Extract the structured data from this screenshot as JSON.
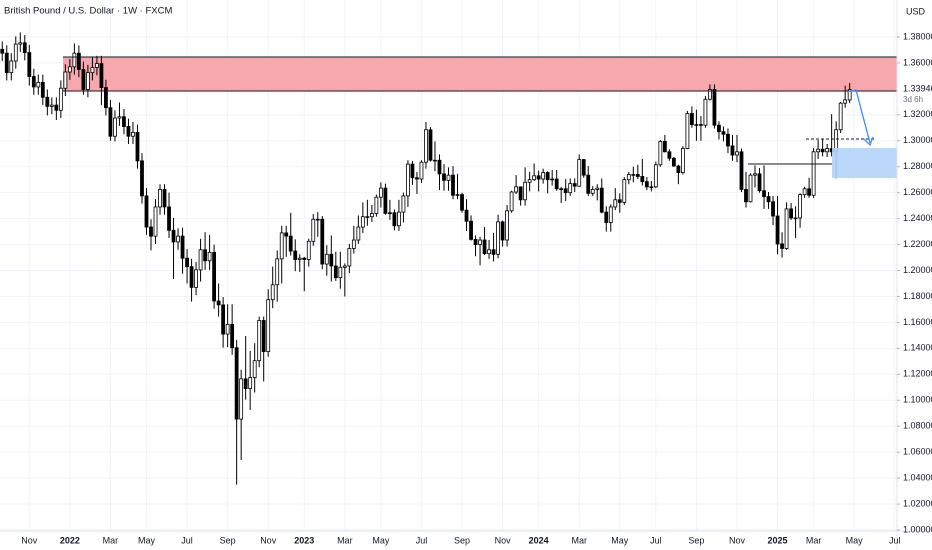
{
  "chart_data": {
    "type": "candlestick",
    "title": "British Pound / U.S. Dollar · 1W · FXCM",
    "currency": "USD",
    "countdown": "3d 6h",
    "up_color": "#ffffff",
    "down_color": "#000000",
    "wick_color": "#000000",
    "grid": true,
    "ylim": [
      1.0,
      1.4085
    ],
    "yticks": [
      {
        "value": 1.0,
        "label": "1.00000"
      },
      {
        "value": 1.02,
        "label": "1.02000"
      },
      {
        "value": 1.04,
        "label": "1.04000"
      },
      {
        "value": 1.06,
        "label": "1.06000"
      },
      {
        "value": 1.08,
        "label": "1.08000"
      },
      {
        "value": 1.1,
        "label": "1.10000"
      },
      {
        "value": 1.12,
        "label": "1.12000"
      },
      {
        "value": 1.14,
        "label": "1.14000"
      },
      {
        "value": 1.16,
        "label": "1.16000"
      },
      {
        "value": 1.18,
        "label": "1.18000"
      },
      {
        "value": 1.2,
        "label": "1.20000"
      },
      {
        "value": 1.22,
        "label": "1.22000"
      },
      {
        "value": 1.24,
        "label": "1.24000"
      },
      {
        "value": 1.26,
        "label": "1.26000"
      },
      {
        "value": 1.28,
        "label": "1.28000"
      },
      {
        "value": 1.3,
        "label": "1.30000"
      },
      {
        "value": 1.32,
        "label": "1.32000"
      },
      {
        "value": 1.36,
        "label": "1.36000"
      },
      {
        "value": 1.38,
        "label": "1.38000"
      }
    ],
    "categories": [
      null,
      null,
      null,
      null,
      null,
      null,
      "Nov",
      null,
      null,
      null,
      null,
      null,
      null,
      null,
      null,
      "2022",
      null,
      null,
      null,
      null,
      null,
      null,
      null,
      null,
      "Mar",
      null,
      null,
      null,
      null,
      null,
      null,
      null,
      "May",
      null,
      null,
      null,
      null,
      null,
      null,
      null,
      null,
      "Jul",
      null,
      null,
      null,
      null,
      null,
      null,
      null,
      null,
      "Sep",
      null,
      null,
      null,
      null,
      null,
      null,
      null,
      null,
      "Nov",
      null,
      null,
      null,
      null,
      null,
      null,
      null,
      "2023",
      null,
      null,
      null,
      null,
      null,
      null,
      null,
      null,
      "Mar",
      null,
      null,
      null,
      null,
      null,
      null,
      null,
      "May",
      null,
      null,
      null,
      null,
      null,
      null,
      null,
      null,
      "Jul",
      null,
      null,
      null,
      null,
      null,
      null,
      null,
      null,
      "Sep",
      null,
      null,
      null,
      null,
      null,
      null,
      null,
      null,
      "Nov",
      null,
      null,
      null,
      null,
      null,
      null,
      null,
      "2024",
      null,
      null,
      null,
      null,
      null,
      null,
      null,
      null,
      "Mar",
      null,
      null,
      null,
      null,
      null,
      null,
      null,
      null,
      "May",
      null,
      null,
      null,
      null,
      null,
      null,
      null,
      "Jul",
      null,
      null,
      null,
      null,
      null,
      null,
      null,
      null,
      "Sep",
      null,
      null,
      null,
      null,
      null,
      null,
      null,
      null,
      "Nov",
      null,
      null,
      null,
      null,
      null,
      null,
      null,
      null,
      "2025",
      null,
      null,
      null,
      null,
      null,
      null,
      null,
      "Mar",
      null,
      null,
      null,
      null,
      null,
      null,
      null,
      null,
      "May",
      null,
      null,
      null,
      null,
      null,
      null,
      null,
      null,
      "Jul"
    ],
    "open": [
      1.3705,
      1.3675,
      1.3525,
      1.3615,
      1.3745,
      1.3755,
      1.368,
      1.3495,
      1.3415,
      1.345,
      1.3335,
      1.3265,
      1.3275,
      1.3235,
      1.3405,
      1.353,
      1.357,
      1.3675,
      1.355,
      1.3395,
      1.3525,
      1.3565,
      1.3595,
      1.341,
      1.3255,
      1.3035,
      1.3175,
      1.3185,
      1.311,
      1.3035,
      1.3065,
      1.2845,
      1.2575,
      1.2335,
      1.2265,
      1.249,
      1.2625,
      1.249,
      1.231,
      1.222,
      1.2265,
      1.2095,
      1.203,
      1.187,
      1.2005,
      1.216,
      1.2075,
      1.214,
      1.1765,
      1.1735,
      1.151,
      1.1585,
      1.1405,
      1.0855,
      1.1165,
      1.109,
      1.1175,
      1.1305,
      1.1615,
      1.1375,
      1.1775,
      1.189,
      1.209,
      1.229,
      1.2265,
      1.215,
      1.2085,
      1.2095,
      1.2085,
      1.2225,
      1.2395,
      1.2395,
      1.205,
      1.2125,
      1.2035,
      1.1945,
      1.2025,
      1.2035,
      1.217,
      1.2235,
      1.2335,
      1.2415,
      1.2415,
      1.244,
      1.2565,
      1.2635,
      1.244,
      1.2445,
      1.2345,
      1.245,
      1.2575,
      1.282,
      1.2715,
      1.2705,
      1.2835,
      1.3085,
      1.285,
      1.285,
      1.2745,
      1.2695,
      1.2735,
      1.258,
      1.2585,
      1.2465,
      1.238,
      1.224,
      1.22,
      1.2235,
      1.213,
      1.216,
      1.2125,
      1.2375,
      1.2235,
      1.246,
      1.2605,
      1.2645,
      1.2545,
      1.268,
      1.27,
      1.273,
      1.2705,
      1.2755,
      1.27,
      1.2705,
      1.263,
      1.263,
      1.26,
      1.267,
      1.265,
      1.2855,
      1.2735,
      1.2595,
      1.2625,
      1.2635,
      1.245,
      1.237,
      1.249,
      1.2545,
      1.2525,
      1.27,
      1.274,
      1.274,
      1.2725,
      1.2685,
      1.2645,
      1.2645,
      1.2815,
      1.2995,
      1.2915,
      1.2865,
      1.2805,
      1.2755,
      1.294,
      1.321,
      1.3125,
      1.3125,
      1.312,
      1.332,
      1.3395,
      1.312,
      1.307,
      1.305,
      1.296,
      1.289,
      1.2915,
      1.2625,
      1.253,
      1.2735,
      1.2745,
      1.2615,
      1.257,
      1.253,
      1.242,
      1.2205,
      1.217,
      1.2475,
      1.2405,
      1.2405,
      1.2585,
      1.263,
      1.258,
      1.2915,
      1.2935,
      1.2915,
      1.294,
      1.2915,
      1.3085,
      1.329,
      1.3315,
      null,
      null,
      null,
      null,
      null,
      null,
      null,
      null,
      null,
      null
    ],
    "high": [
      1.3765,
      1.3735,
      1.3675,
      1.3805,
      1.3835,
      1.3815,
      1.374,
      1.3555,
      1.351,
      1.351,
      1.3395,
      1.3335,
      1.3335,
      1.3465,
      1.359,
      1.363,
      1.375,
      1.3735,
      1.361,
      1.3585,
      1.3645,
      1.3655,
      1.3655,
      1.347,
      1.3315,
      1.3235,
      1.3295,
      1.3245,
      1.317,
      1.3145,
      1.3125,
      1.2905,
      1.2635,
      1.2395,
      1.255,
      1.2665,
      1.2665,
      1.26,
      1.2405,
      1.2325,
      1.233,
      1.2165,
      1.209,
      1.2065,
      1.2245,
      1.2295,
      1.2275,
      1.22,
      1.19,
      1.1795,
      1.174,
      1.174,
      1.1465,
      1.1235,
      1.1495,
      1.138,
      1.144,
      1.1645,
      1.1645,
      1.1855,
      1.203,
      1.2155,
      1.2345,
      1.2345,
      1.2445,
      1.224,
      1.2125,
      1.2105,
      1.2245,
      1.2435,
      1.245,
      1.242,
      1.2195,
      1.227,
      1.2145,
      1.2145,
      1.2055,
      1.2205,
      1.2345,
      1.2425,
      1.2525,
      1.2545,
      1.2505,
      1.2585,
      1.268,
      1.267,
      1.2545,
      1.247,
      1.2545,
      1.26,
      1.285,
      1.2845,
      1.276,
      1.285,
      1.3145,
      1.3105,
      1.2995,
      1.2895,
      1.282,
      1.2795,
      1.2805,
      1.2745,
      1.26,
      1.255,
      1.2425,
      1.227,
      1.226,
      1.2335,
      1.2235,
      1.229,
      1.243,
      1.2385,
      1.2505,
      1.2615,
      1.2735,
      1.2645,
      1.2795,
      1.276,
      1.2825,
      1.277,
      1.2785,
      1.2765,
      1.2775,
      1.2775,
      1.2645,
      1.2705,
      1.271,
      1.271,
      1.2895,
      1.286,
      1.2805,
      1.265,
      1.2665,
      1.271,
      1.2495,
      1.251,
      1.2635,
      1.2595,
      1.272,
      1.276,
      1.28,
      1.2815,
      1.286,
      1.272,
      1.269,
      1.284,
      1.3005,
      1.3045,
      1.2935,
      1.2875,
      1.2815,
      1.296,
      1.323,
      1.3265,
      1.324,
      1.319,
      1.3345,
      1.3435,
      1.3435,
      1.315,
      1.311,
      1.3095,
      1.3045,
      1.3045,
      1.294,
      1.276,
      1.275,
      1.281,
      1.279,
      1.281,
      1.2605,
      1.2575,
      1.2575,
      1.2295,
      1.2525,
      1.252,
      1.2495,
      1.2595,
      1.2645,
      1.2715,
      1.2945,
      1.3005,
      1.3015,
      1.2975,
      1.3205,
      1.315,
      1.33,
      1.3425,
      1.3445,
      null,
      null,
      null,
      null,
      null,
      null,
      null,
      null,
      null,
      null
    ],
    "low": [
      1.3615,
      1.3465,
      1.3465,
      1.3555,
      1.3685,
      1.362,
      1.3425,
      1.3355,
      1.3355,
      1.3275,
      1.3195,
      1.3205,
      1.316,
      1.3175,
      1.3345,
      1.347,
      1.351,
      1.349,
      1.3355,
      1.3335,
      1.3465,
      1.3505,
      1.3275,
      1.3195,
      1.3,
      1.2995,
      1.3115,
      1.305,
      1.2975,
      1.2975,
      1.2785,
      1.2515,
      1.2275,
      1.2155,
      1.2205,
      1.243,
      1.243,
      1.225,
      1.1935,
      1.216,
      1.1975,
      1.19,
      1.176,
      1.181,
      1.1915,
      1.2005,
      1.2005,
      1.1705,
      1.1645,
      1.1405,
      1.141,
      1.135,
      1.035,
      1.054,
      1.1005,
      1.0925,
      1.106,
      1.1255,
      1.1145,
      1.1335,
      1.171,
      1.176,
      1.19,
      1.2105,
      1.2115,
      1.1995,
      1.199,
      1.184,
      1.203,
      1.219,
      1.226,
      1.201,
      1.196,
      1.1915,
      1.192,
      1.186,
      1.18,
      1.198,
      1.213,
      1.2205,
      1.229,
      1.2345,
      1.2375,
      1.2415,
      1.2485,
      1.243,
      1.239,
      1.231,
      1.2305,
      1.237,
      1.249,
      1.266,
      1.259,
      1.2675,
      1.2785,
      1.284,
      1.2765,
      1.262,
      1.2615,
      1.2615,
      1.255,
      1.255,
      1.2445,
      1.2305,
      1.223,
      1.211,
      1.204,
      1.212,
      1.209,
      1.207,
      1.2095,
      1.2185,
      1.2185,
      1.2445,
      1.259,
      1.25,
      1.25,
      1.261,
      1.269,
      1.261,
      1.267,
      1.2595,
      1.2655,
      1.2615,
      1.252,
      1.2535,
      1.2575,
      1.2605,
      1.2645,
      1.2715,
      1.2575,
      1.2575,
      1.254,
      1.244,
      1.23,
      1.23,
      1.2465,
      1.2445,
      1.2505,
      1.2665,
      1.268,
      1.2705,
      1.2655,
      1.262,
      1.261,
      1.2635,
      1.28,
      1.291,
      1.2845,
      1.28,
      1.2665,
      1.274,
      1.2935,
      1.31,
      1.3,
      1.3,
      1.31,
      1.331,
      1.3095,
      1.301,
      1.2995,
      1.2905,
      1.2845,
      1.2835,
      1.2605,
      1.2485,
      1.2525,
      1.264,
      1.26,
      1.2475,
      1.2475,
      1.235,
      1.2125,
      1.21,
      1.216,
      1.239,
      1.225,
      1.233,
      1.256,
      1.256,
      1.256,
      1.286,
      1.288,
      1.2875,
      1.288,
      1.271,
      1.306,
      1.3255,
      1.329,
      null,
      null,
      null,
      null,
      null,
      null,
      null,
      null,
      null,
      null
    ],
    "close": [
      1.3675,
      1.3525,
      1.3615,
      1.3745,
      1.3755,
      1.368,
      1.3495,
      1.3415,
      1.345,
      1.3335,
      1.3265,
      1.3275,
      1.3235,
      1.3405,
      1.353,
      1.357,
      1.3675,
      1.355,
      1.3395,
      1.3525,
      1.3565,
      1.3595,
      1.341,
      1.3255,
      1.3035,
      1.3175,
      1.3185,
      1.311,
      1.3035,
      1.3065,
      1.2845,
      1.2575,
      1.2335,
      1.2265,
      1.249,
      1.2625,
      1.249,
      1.231,
      1.222,
      1.2265,
      1.2095,
      1.203,
      1.187,
      1.2005,
      1.216,
      1.2075,
      1.214,
      1.1765,
      1.1735,
      1.151,
      1.1585,
      1.1405,
      1.0855,
      1.1165,
      1.109,
      1.1175,
      1.1305,
      1.1615,
      1.1375,
      1.1775,
      1.189,
      1.209,
      1.229,
      1.2265,
      1.215,
      1.2085,
      1.2095,
      1.2085,
      1.2225,
      1.2395,
      1.2395,
      1.205,
      1.2125,
      1.2035,
      1.1945,
      1.2025,
      1.2035,
      1.217,
      1.2235,
      1.2335,
      1.2415,
      1.2415,
      1.244,
      1.2565,
      1.2635,
      1.244,
      1.2445,
      1.2345,
      1.245,
      1.2575,
      1.282,
      1.2715,
      1.2705,
      1.2835,
      1.3085,
      1.285,
      1.285,
      1.2745,
      1.2695,
      1.2735,
      1.258,
      1.2585,
      1.2465,
      1.238,
      1.224,
      1.22,
      1.2235,
      1.213,
      1.216,
      1.2125,
      1.2375,
      1.2235,
      1.246,
      1.2605,
      1.2645,
      1.2545,
      1.268,
      1.27,
      1.273,
      1.2705,
      1.2755,
      1.27,
      1.2705,
      1.263,
      1.263,
      1.26,
      1.267,
      1.265,
      1.2855,
      1.2735,
      1.2595,
      1.2625,
      1.2635,
      1.245,
      1.237,
      1.249,
      1.2545,
      1.2525,
      1.27,
      1.274,
      1.274,
      1.2725,
      1.2685,
      1.2645,
      1.2645,
      1.2815,
      1.2995,
      1.2915,
      1.2865,
      1.2805,
      1.2755,
      1.294,
      1.321,
      1.3125,
      1.3125,
      1.312,
      1.332,
      1.3395,
      1.312,
      1.307,
      1.305,
      1.296,
      1.289,
      1.2915,
      1.2625,
      1.253,
      1.2735,
      1.2745,
      1.2615,
      1.257,
      1.253,
      1.242,
      1.2205,
      1.217,
      1.2475,
      1.2405,
      1.2405,
      1.2585,
      1.263,
      1.258,
      1.2915,
      1.2935,
      1.2915,
      1.294,
      1.2915,
      1.3085,
      1.329,
      1.3315,
      1.33946,
      null,
      null,
      null,
      null,
      null,
      null,
      null,
      null,
      null,
      null
    ]
  }
}
